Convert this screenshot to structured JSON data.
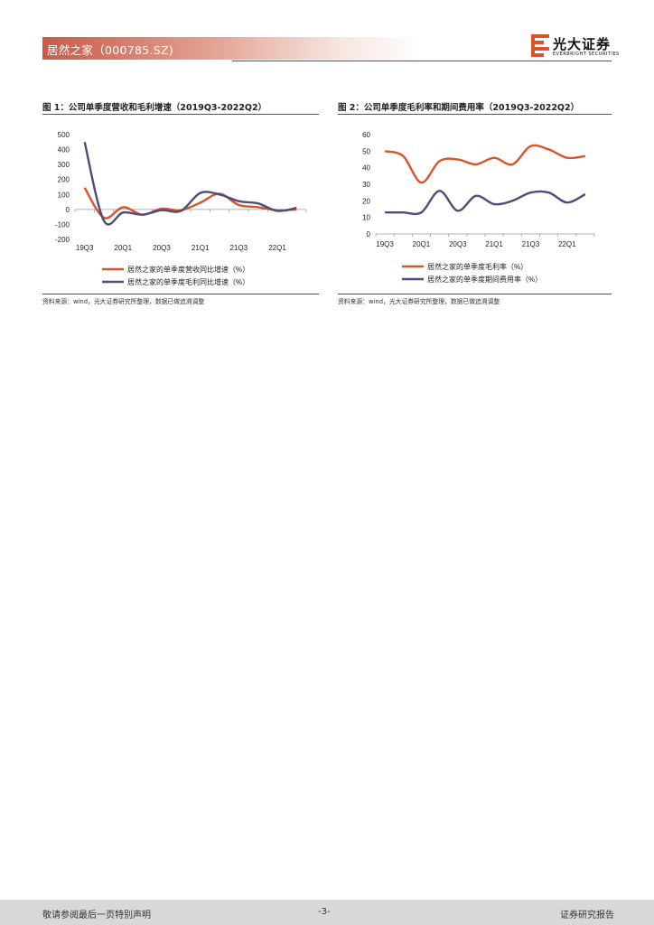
{
  "header": {
    "title": "居然之家（000785.SZ)"
  },
  "brand": {
    "name_cn": "光大证券",
    "name_en": "EVERBRIGHT SECURITIES"
  },
  "figures": [
    {
      "title": "图 1：公司单季度营收和毛利增速（2019Q3-2022Q2）",
      "source": "资料来源：wind，光大证券研究所整理，数据已做追溯调整"
    },
    {
      "title": "图 2：公司单季度毛利率和期间费用率（2019Q3-2022Q2）",
      "source": "资料来源：wind，光大证券研究所整理，数据已做追溯调整"
    }
  ],
  "chart_data": [
    {
      "type": "line",
      "categories": [
        "19Q3",
        "19Q4",
        "20Q1",
        "20Q2",
        "20Q3",
        "20Q4",
        "21Q1",
        "21Q2",
        "21Q3",
        "21Q4",
        "22Q1",
        "22Q2"
      ],
      "tick_labels": [
        "19Q3",
        "20Q1",
        "20Q3",
        "21Q1",
        "21Q3",
        "22Q1"
      ],
      "ylim": [
        -200,
        500
      ],
      "yticks": [
        500,
        400,
        300,
        200,
        100,
        0,
        -100,
        -200
      ],
      "series": [
        {
          "name": "居然之家的单季度营收同比增速（%）",
          "color": "#d9532b",
          "values": [
            145,
            -55,
            15,
            -35,
            5,
            -5,
            45,
            105,
            30,
            15,
            -5,
            0
          ]
        },
        {
          "name": "居然之家的单季度毛利同比增速（%）",
          "color": "#4d4d7a",
          "values": [
            450,
            -75,
            -20,
            -35,
            -5,
            -10,
            110,
            100,
            55,
            40,
            -10,
            10
          ]
        }
      ]
    },
    {
      "type": "line",
      "categories": [
        "19Q3",
        "19Q4",
        "20Q1",
        "20Q2",
        "20Q3",
        "20Q4",
        "21Q1",
        "21Q2",
        "21Q3",
        "21Q4",
        "22Q1",
        "22Q2"
      ],
      "tick_labels": [
        "19Q3",
        "20Q1",
        "20Q3",
        "21Q1",
        "21Q3",
        "22Q1"
      ],
      "ylim": [
        0,
        60
      ],
      "yticks": [
        60,
        50,
        40,
        30,
        20,
        10,
        0
      ],
      "series": [
        {
          "name": "居然之家的单季度毛利率（%）",
          "color": "#d9532b",
          "values": [
            50,
            47,
            31,
            44,
            45,
            42,
            46,
            42,
            53,
            51,
            46,
            47
          ]
        },
        {
          "name": "居然之家的单季度期间费用率（%）",
          "color": "#4d4d7a",
          "values": [
            13,
            13,
            13,
            26,
            14,
            23,
            18,
            20,
            25,
            25,
            19,
            24
          ]
        }
      ]
    }
  ],
  "footer": {
    "left": "敬请参阅最后一页特别声明",
    "center": "-3-",
    "right": "证券研究报告"
  }
}
